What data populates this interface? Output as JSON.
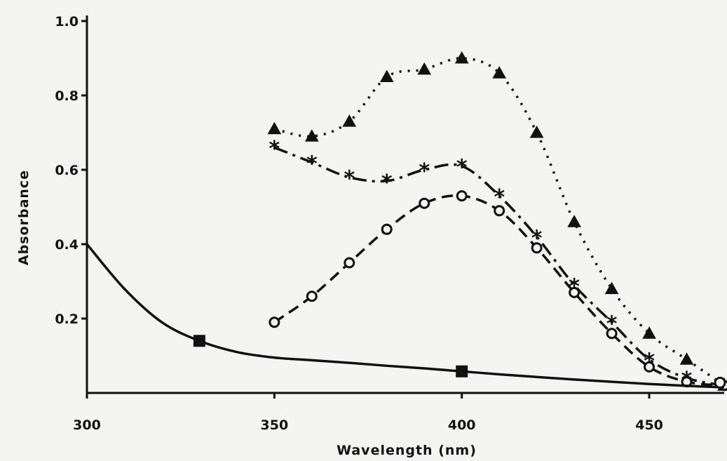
{
  "chart_data": {
    "type": "line",
    "title": "",
    "xlabel": "Wavelength (nm)",
    "ylabel": "Absorbance",
    "xlim": [
      300,
      470
    ],
    "ylim": [
      0,
      1.0
    ],
    "x_ticks": [
      {
        "value": 300,
        "label": "300"
      },
      {
        "value": 350,
        "label": "350"
      },
      {
        "value": 400,
        "label": "400"
      },
      {
        "value": 450,
        "label": "450"
      }
    ],
    "y_ticks": [
      {
        "value": 0.2,
        "label": "0.2"
      },
      {
        "value": 0.4,
        "label": "0.4"
      },
      {
        "value": 0.6,
        "label": "0.6"
      },
      {
        "value": 0.8,
        "label": "0.8"
      },
      {
        "value": 1.0,
        "label": "1.0"
      }
    ],
    "grid": false,
    "legend": "none",
    "series": [
      {
        "marker": "triangle-filled",
        "line_style": "dotted",
        "x": [
          350,
          360,
          370,
          380,
          390,
          400,
          410,
          420,
          430,
          440,
          450,
          460,
          470
        ],
        "y": [
          0.71,
          0.69,
          0.73,
          0.85,
          0.87,
          0.9,
          0.86,
          0.7,
          0.46,
          0.28,
          0.16,
          0.09,
          0.02
        ]
      },
      {
        "marker": "asterisk",
        "line_style": "dash-dot",
        "x": [
          350,
          360,
          370,
          380,
          390,
          400,
          410,
          420,
          430,
          440,
          450,
          460,
          470
        ],
        "y": [
          0.66,
          0.62,
          0.58,
          0.57,
          0.6,
          0.61,
          0.53,
          0.42,
          0.29,
          0.19,
          0.09,
          0.04,
          0.02
        ]
      },
      {
        "marker": "circle-open",
        "line_style": "dashed",
        "x": [
          350,
          360,
          370,
          380,
          390,
          400,
          410,
          420,
          430,
          440,
          450,
          460,
          470
        ],
        "y": [
          0.19,
          0.26,
          0.35,
          0.44,
          0.51,
          0.53,
          0.49,
          0.39,
          0.27,
          0.16,
          0.07,
          0.03,
          0.02
        ]
      },
      {
        "marker": "square-filled",
        "line_style": "solid",
        "x": [
          300,
          310,
          320,
          330,
          340,
          350,
          360,
          370,
          380,
          390,
          400,
          410,
          420,
          430,
          440,
          450,
          460,
          470
        ],
        "y": [
          0.4,
          0.28,
          0.19,
          0.14,
          0.11,
          0.095,
          0.088,
          0.081,
          0.073,
          0.066,
          0.058,
          0.05,
          0.043,
          0.036,
          0.03,
          0.024,
          0.019,
          0.015
        ],
        "marker_x": [
          330,
          400
        ]
      }
    ]
  }
}
